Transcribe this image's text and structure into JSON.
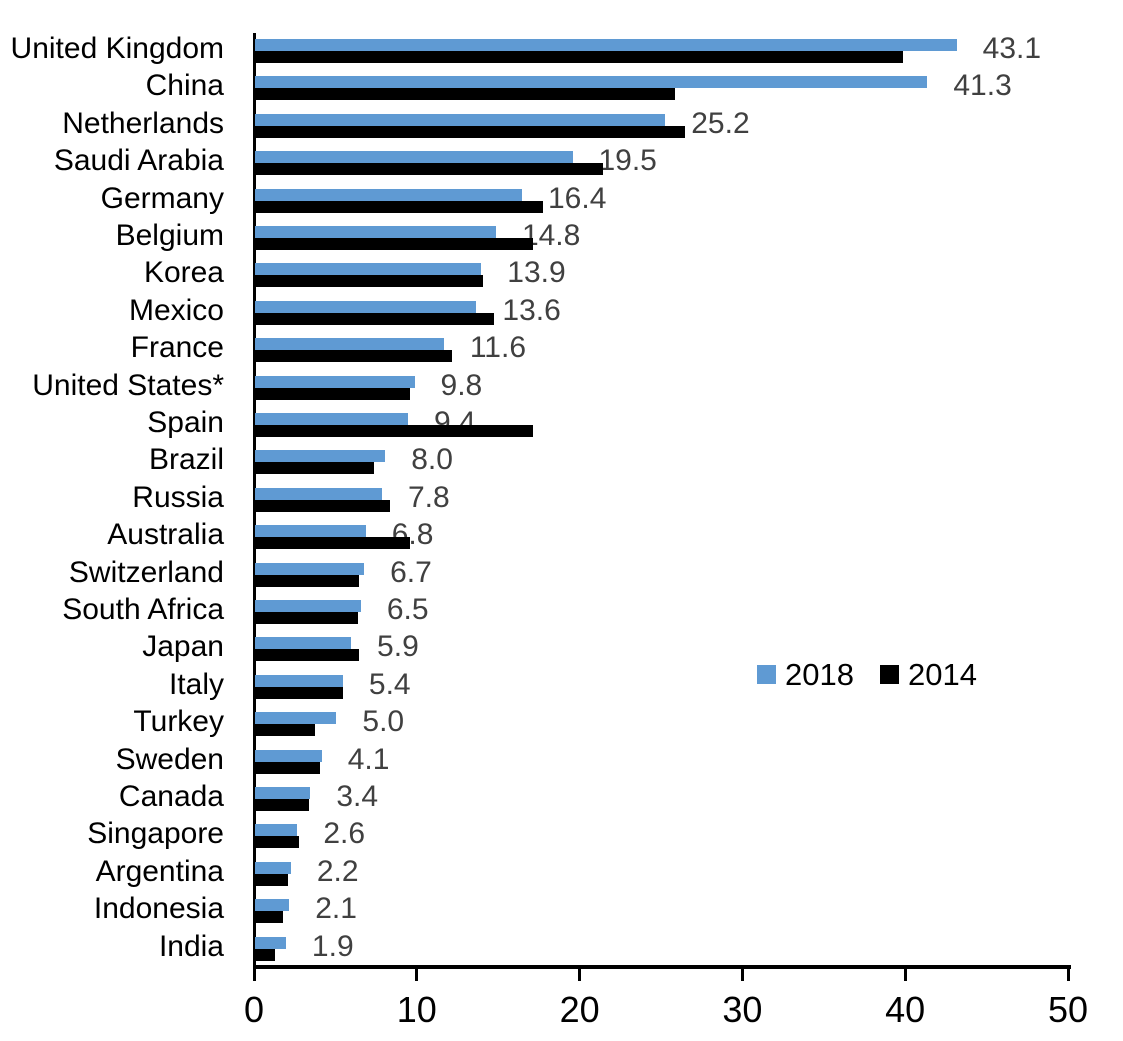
{
  "chart_data": {
    "type": "bar",
    "orientation": "horizontal",
    "title": "",
    "xlabel": "",
    "ylabel": "",
    "xlim": [
      0,
      50
    ],
    "x_ticks": [
      0,
      10,
      20,
      30,
      40,
      50
    ],
    "grid": false,
    "legend_position": "middle-right",
    "data_label_series": "2018",
    "categories": [
      "United Kingdom",
      "China",
      "Netherlands",
      "Saudi Arabia",
      "Germany",
      "Belgium",
      "Korea",
      "Mexico",
      "France",
      "United States*",
      "Spain",
      "Brazil",
      "Russia",
      "Australia",
      "Switzerland",
      "South Africa",
      "Japan",
      "Italy",
      "Turkey",
      "Sweden",
      "Canada",
      "Singapore",
      "Argentina",
      "Indonesia",
      "India"
    ],
    "series": [
      {
        "name": "2018",
        "color": "#5f9ad3",
        "values": [
          43.1,
          41.3,
          25.2,
          19.5,
          16.4,
          14.8,
          13.9,
          13.6,
          11.6,
          9.8,
          9.4,
          8.0,
          7.8,
          6.8,
          6.7,
          6.5,
          5.9,
          5.4,
          5.0,
          4.1,
          3.4,
          2.6,
          2.2,
          2.1,
          1.9
        ]
      },
      {
        "name": "2014",
        "color": "#000000",
        "values": [
          39.8,
          25.8,
          26.4,
          21.4,
          17.7,
          17.1,
          14.0,
          14.7,
          12.1,
          9.5,
          17.1,
          7.3,
          8.3,
          9.5,
          6.4,
          6.3,
          6.4,
          5.4,
          3.7,
          4.0,
          3.3,
          2.7,
          2.0,
          1.7,
          1.2
        ]
      }
    ]
  },
  "colors": {
    "value_label": "#404040",
    "axis": "#000000"
  }
}
